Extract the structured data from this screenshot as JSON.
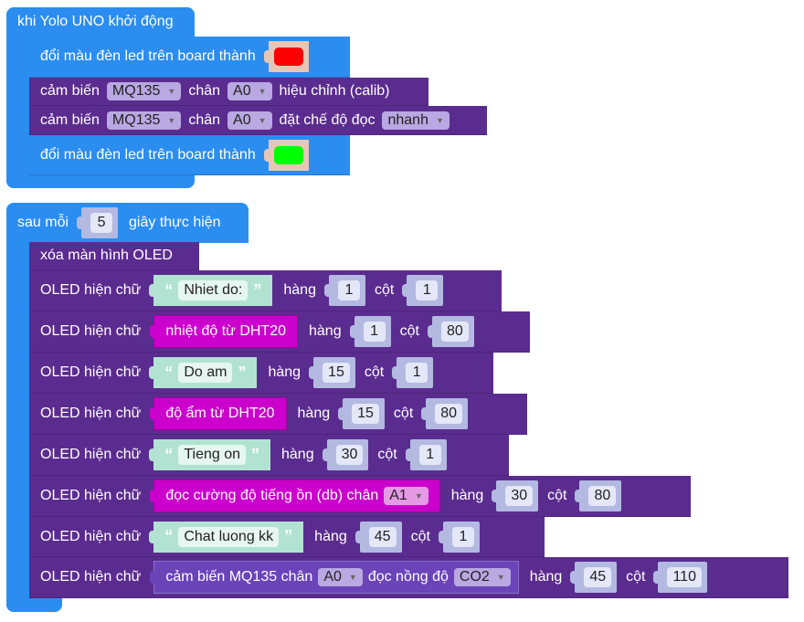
{
  "setup": {
    "title": "khi Yolo UNO khởi động",
    "led1": {
      "label": "đổi màu đèn led trên board thành",
      "color": "#ff0000"
    },
    "calib": {
      "p1": "cảm biến",
      "sensor": "MQ135",
      "p2": "chân",
      "pin": "A0",
      "p3": "hiệu chỉnh (calib)"
    },
    "mode": {
      "p1": "cảm biến",
      "sensor": "MQ135",
      "p2": "chân",
      "pin": "A0",
      "p3": "đặt chế độ đọc",
      "value": "nhanh"
    },
    "led2": {
      "label": "đổi màu đèn led trên board thành",
      "color": "#00ff00"
    }
  },
  "loop": {
    "p1": "sau mỗi",
    "interval": "5",
    "p2": "giây thực hiện",
    "clear": "xóa màn hình OLED",
    "oled_label": "OLED hiện chữ",
    "row_label": "hàng",
    "col_label": "cột",
    "rows": [
      {
        "kind": "text",
        "value": "Nhiet do:",
        "row": "1",
        "col": "1"
      },
      {
        "kind": "block",
        "value": "nhiệt độ từ DHT20",
        "row": "1",
        "col": "80"
      },
      {
        "kind": "text",
        "value": "Do am",
        "row": "15",
        "col": "1"
      },
      {
        "kind": "block",
        "value": "độ ẩm từ DHT20",
        "row": "15",
        "col": "80"
      },
      {
        "kind": "text",
        "value": "Tieng on",
        "row": "30",
        "col": "1"
      },
      {
        "kind": "noise",
        "value": "đọc cường độ tiếng ồn (db) chân",
        "pin": "A1",
        "row": "30",
        "col": "80"
      },
      {
        "kind": "text",
        "value": "Chat luong kk",
        "row": "45",
        "col": "1"
      },
      {
        "kind": "gas",
        "p1": "cảm biến MQ135 chân",
        "pin": "A0",
        "p2": "đọc nồng độ",
        "gas": "CO2",
        "row": "45",
        "col": "110"
      }
    ]
  },
  "icons": {
    "quote_open": "“",
    "quote_close": "”",
    "dropdown": "▼"
  },
  "colors": {
    "event": "#2b8df0",
    "oled": "#5b2c8f",
    "sensor": "#cc00cc",
    "gas": "#6a44b8"
  }
}
